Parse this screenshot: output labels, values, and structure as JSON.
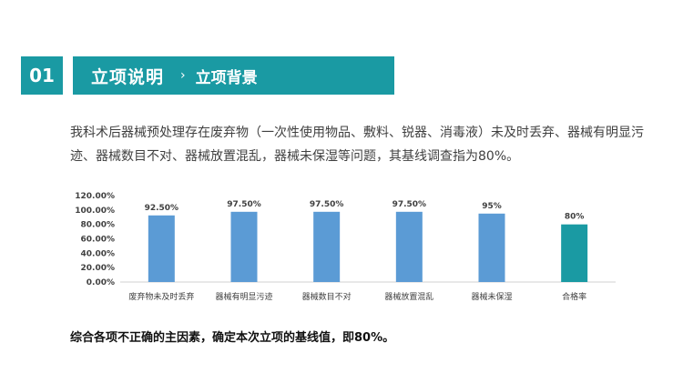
{
  "section": {
    "number": "01",
    "title": "立项说明",
    "separator": "›",
    "subtitle": "立项背景"
  },
  "description": "我科术后器械预处理存在废弃物（一次性使用物品、敷料、锐器、消毒液）未及时丢弃、器械有明显污迹、器械数目不对、器械放置混乱，器械未保湿等问题，其基线调查指为80%。",
  "conclusion": "综合各项不正确的主因素，确定本次立项的基线值，即80%。",
  "colors": {
    "accent": "#1a9aa3",
    "bar": "#5b9bd5",
    "bar_highlight": "#1a9aa3"
  },
  "chart_data": {
    "type": "bar",
    "categories": [
      "废弃物未及时丢弃",
      "器械有明显污迹",
      "器械数目不对",
      "器械放置混乱",
      "器械未保湿",
      "合格率"
    ],
    "values": [
      92.5,
      97.5,
      97.5,
      97.5,
      95,
      80
    ],
    "data_labels": [
      "92.50%",
      "97.50%",
      "97.50%",
      "97.50%",
      "95%",
      "80%"
    ],
    "y_ticks": [
      "0.00%",
      "20.00%",
      "40.00%",
      "60.00%",
      "80.00%",
      "100.00%",
      "120.00%"
    ],
    "ylim": [
      0,
      120
    ],
    "grid": false,
    "legend": "none"
  }
}
